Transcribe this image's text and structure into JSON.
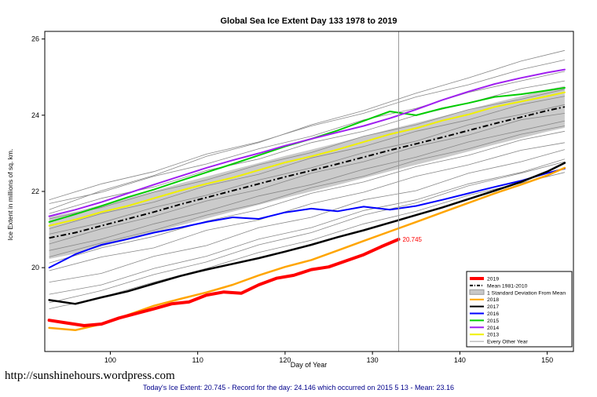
{
  "page": {
    "footer_url": "http://sunshinehours.wordpress.com",
    "footer_stats": "Today's Ice Extent: 20.745  - Record for the day: 24.146 which occurred on 2015 5 13  - Mean: 23.16"
  },
  "legend": {
    "items": [
      {
        "label": "2019",
        "color": "#FF0000",
        "style": "thick"
      },
      {
        "label": "Mean 1981-2010",
        "color": "#000000",
        "style": "dashdot"
      },
      {
        "label": "1 Standard Deviation From Mean",
        "color": "#c8c8c8",
        "style": "box"
      },
      {
        "label": "2018",
        "color": "#FFA500",
        "style": "line"
      },
      {
        "label": "2017",
        "color": "#000000",
        "style": "line"
      },
      {
        "label": "2016",
        "color": "#0000FF",
        "style": "line"
      },
      {
        "label": "2015",
        "color": "#00CC00",
        "style": "line"
      },
      {
        "label": "2014",
        "color": "#A020F0",
        "style": "line"
      },
      {
        "label": "2013",
        "color": "#F0F000",
        "style": "line"
      },
      {
        "label": "Every Other Year",
        "color": "#808080",
        "style": "thin"
      }
    ]
  },
  "chart_data": {
    "type": "line",
    "title": "Global Sea Ice Extent Day 133 1978 to 2019",
    "xlabel": "Day of Year",
    "ylabel": "Ice Extent in millions of sq. km.",
    "xlim": [
      92.5,
      153
    ],
    "ylim": [
      17.8,
      26.2
    ],
    "xticks": [
      100,
      110,
      120,
      130,
      140,
      150
    ],
    "yticks": [
      20,
      22,
      24,
      26
    ],
    "reference_line_x": 133,
    "annotation": {
      "text": "20.745",
      "x": 133,
      "y": 20.745,
      "color": "#FF0000"
    },
    "band": {
      "label": "1 Standard Deviation From Mean",
      "color": "#c8c8c8",
      "x": [
        93,
        96,
        99,
        102,
        105,
        108,
        111,
        114,
        117,
        120,
        123,
        126,
        129,
        132,
        135,
        138,
        141,
        144,
        147,
        150,
        152
      ],
      "upper": [
        21.33,
        21.47,
        21.65,
        21.83,
        22.01,
        22.21,
        22.39,
        22.57,
        22.75,
        22.93,
        23.1,
        23.27,
        23.45,
        23.63,
        23.8,
        23.97,
        24.15,
        24.33,
        24.5,
        24.67,
        24.77
      ],
      "lower": [
        20.23,
        20.37,
        20.55,
        20.73,
        20.91,
        21.11,
        21.29,
        21.47,
        21.65,
        21.83,
        22.0,
        22.17,
        22.35,
        22.53,
        22.7,
        22.87,
        23.05,
        23.23,
        23.4,
        23.57,
        23.67
      ]
    },
    "mean": {
      "label": "Mean 1981-2010",
      "color": "#000000",
      "x": [
        93,
        96,
        99,
        102,
        105,
        108,
        111,
        114,
        117,
        120,
        123,
        126,
        129,
        132,
        135,
        138,
        141,
        144,
        147,
        150,
        152
      ],
      "values": [
        20.78,
        20.92,
        21.1,
        21.28,
        21.46,
        21.66,
        21.84,
        22.02,
        22.2,
        22.38,
        22.55,
        22.72,
        22.9,
        23.08,
        23.25,
        23.42,
        23.6,
        23.78,
        23.95,
        24.12,
        24.22
      ]
    },
    "series": [
      {
        "name": "2013",
        "color": "#F0F000",
        "width": 2,
        "x": [
          93,
          96,
          99,
          102,
          105,
          108,
          111,
          114,
          117,
          120,
          123,
          126,
          129,
          132,
          135,
          138,
          141,
          144,
          147,
          150,
          152
        ],
        "values": [
          21.1,
          21.26,
          21.46,
          21.62,
          21.82,
          22.02,
          22.2,
          22.36,
          22.56,
          22.76,
          22.92,
          23.1,
          23.3,
          23.5,
          23.66,
          23.86,
          24.02,
          24.22,
          24.36,
          24.5,
          24.6
        ]
      },
      {
        "name": "2015",
        "color": "#00CC00",
        "width": 2,
        "x": [
          93,
          96,
          99,
          102,
          105,
          108,
          111,
          114,
          117,
          120,
          123,
          126,
          129,
          132,
          135,
          138,
          141,
          144,
          147,
          150,
          152
        ],
        "values": [
          21.2,
          21.4,
          21.62,
          21.85,
          22.05,
          22.28,
          22.5,
          22.72,
          22.95,
          23.18,
          23.38,
          23.6,
          23.85,
          24.1,
          24.0,
          24.18,
          24.32,
          24.48,
          24.55,
          24.65,
          24.72
        ]
      },
      {
        "name": "2014",
        "color": "#A020F0",
        "width": 2,
        "x": [
          93,
          96,
          99,
          102,
          105,
          108,
          111,
          114,
          117,
          120,
          123,
          126,
          129,
          132,
          135,
          138,
          141,
          144,
          147,
          150,
          152
        ],
        "values": [
          21.35,
          21.52,
          21.72,
          21.95,
          22.18,
          22.4,
          22.62,
          22.82,
          23.0,
          23.2,
          23.38,
          23.55,
          23.72,
          23.92,
          24.15,
          24.4,
          24.62,
          24.82,
          24.98,
          25.12,
          25.2
        ]
      },
      {
        "name": "2016",
        "color": "#0000FF",
        "width": 2,
        "x": [
          93,
          96,
          99,
          102,
          105,
          108,
          111,
          114,
          117,
          120,
          123,
          126,
          129,
          132,
          135,
          138,
          141,
          144,
          147,
          150,
          152
        ],
        "values": [
          20.0,
          20.35,
          20.6,
          20.75,
          20.92,
          21.05,
          21.2,
          21.32,
          21.28,
          21.45,
          21.55,
          21.48,
          21.6,
          21.52,
          21.62,
          21.78,
          21.95,
          22.12,
          22.28,
          22.48,
          22.6
        ]
      },
      {
        "name": "2017",
        "color": "#000000",
        "width": 2.5,
        "x": [
          93,
          96,
          99,
          102,
          105,
          108,
          111,
          114,
          117,
          120,
          123,
          126,
          129,
          132,
          135,
          138,
          141,
          144,
          147,
          150,
          152
        ],
        "values": [
          19.15,
          19.05,
          19.22,
          19.38,
          19.58,
          19.78,
          19.95,
          20.1,
          20.25,
          20.42,
          20.6,
          20.8,
          20.98,
          21.18,
          21.38,
          21.58,
          21.8,
          22.02,
          22.25,
          22.52,
          22.75
        ]
      },
      {
        "name": "2018",
        "color": "#FFA500",
        "width": 2.5,
        "x": [
          93,
          96,
          99,
          102,
          105,
          108,
          111,
          114,
          117,
          120,
          123,
          126,
          129,
          132,
          135,
          138,
          141,
          144,
          147,
          150,
          152
        ],
        "values": [
          18.42,
          18.36,
          18.52,
          18.76,
          19.0,
          19.18,
          19.35,
          19.55,
          19.8,
          20.02,
          20.2,
          20.45,
          20.7,
          20.95,
          21.2,
          21.45,
          21.7,
          21.95,
          22.18,
          22.42,
          22.62
        ]
      },
      {
        "name": "2019",
        "color": "#FF0000",
        "width": 4,
        "x": [
          93,
          95,
          97,
          99,
          101,
          103,
          105,
          107,
          109,
          111,
          113,
          115,
          117,
          119,
          121,
          123,
          125,
          127,
          129,
          131,
          133
        ],
        "values": [
          18.62,
          18.55,
          18.48,
          18.52,
          18.68,
          18.8,
          18.92,
          19.05,
          19.1,
          19.28,
          19.36,
          19.33,
          19.55,
          19.72,
          19.8,
          19.95,
          20.02,
          20.18,
          20.34,
          20.55,
          20.745
        ]
      }
    ],
    "background": {
      "label": "Every Other Year",
      "color": "#888888",
      "x": [
        93,
        99,
        105,
        111,
        117,
        123,
        129,
        135,
        141,
        147,
        152
      ],
      "lines": [
        [
          19.3,
          19.55,
          19.98,
          20.3,
          20.75,
          21.05,
          21.5,
          21.78,
          22.2,
          22.5,
          22.85
        ],
        [
          19.62,
          19.85,
          20.3,
          20.58,
          21.05,
          21.32,
          21.78,
          22.02,
          22.48,
          22.78,
          23.1
        ],
        [
          19.92,
          20.28,
          20.52,
          20.98,
          21.25,
          21.68,
          21.98,
          22.4,
          22.7,
          23.08,
          23.28
        ],
        [
          20.12,
          20.52,
          20.82,
          21.22,
          21.52,
          21.95,
          22.25,
          22.65,
          22.95,
          23.35,
          23.58
        ],
        [
          20.45,
          20.75,
          21.15,
          21.48,
          21.88,
          22.18,
          22.58,
          22.9,
          23.3,
          23.6,
          23.85
        ],
        [
          20.62,
          21.02,
          21.35,
          21.75,
          22.05,
          22.48,
          22.78,
          23.18,
          23.48,
          23.88,
          24.05
        ],
        [
          20.88,
          21.18,
          21.58,
          21.9,
          22.3,
          22.62,
          23.02,
          23.32,
          23.75,
          24.02,
          24.28
        ],
        [
          21.02,
          21.42,
          21.72,
          22.15,
          22.45,
          22.88,
          23.18,
          23.58,
          23.88,
          24.28,
          24.5
        ],
        [
          21.28,
          21.58,
          21.98,
          22.3,
          22.7,
          23.02,
          23.45,
          23.75,
          24.15,
          24.42,
          24.68
        ],
        [
          21.42,
          21.82,
          22.12,
          22.55,
          22.85,
          23.28,
          23.58,
          24.0,
          24.32,
          24.7,
          24.9
        ],
        [
          21.68,
          21.98,
          22.4,
          22.72,
          23.12,
          23.45,
          23.88,
          24.18,
          24.6,
          24.9,
          25.15
        ],
        [
          21.78,
          22.2,
          22.52,
          22.98,
          23.3,
          23.72,
          24.05,
          24.48,
          24.8,
          25.2,
          25.45
        ],
        [
          21.52,
          22.02,
          22.42,
          22.92,
          23.28,
          23.75,
          24.12,
          24.58,
          24.98,
          25.42,
          25.7
        ],
        [
          18.92,
          19.22,
          19.62,
          19.98,
          20.4,
          20.72,
          21.15,
          21.48,
          21.9,
          22.22,
          22.5
        ],
        [
          19.08,
          19.4,
          19.82,
          20.15,
          20.6,
          20.92,
          21.38,
          21.7,
          22.15,
          22.48,
          22.78
        ],
        [
          20.28,
          20.65,
          20.98,
          21.38,
          21.68,
          22.1,
          22.4,
          22.82,
          23.12,
          23.5,
          23.72
        ]
      ]
    }
  }
}
